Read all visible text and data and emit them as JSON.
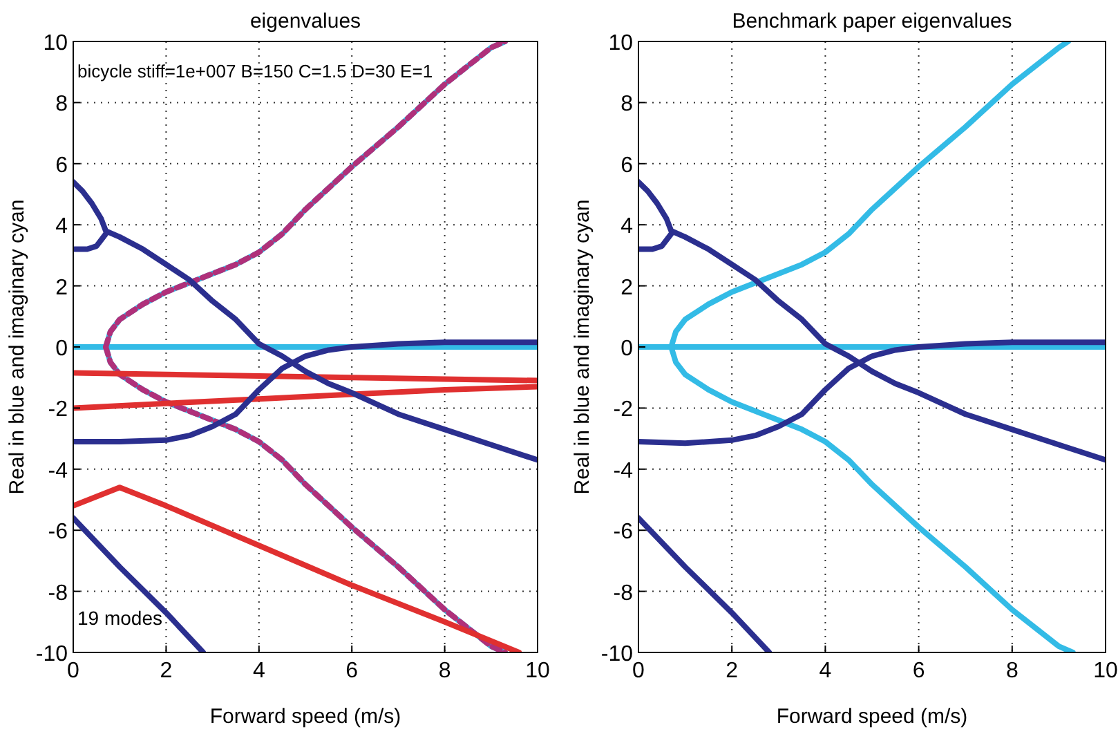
{
  "chart_data": [
    {
      "type": "line",
      "title": "eigenvalues",
      "xlabel": "Forward speed (m/s)",
      "ylabel": "Real in blue and imaginary cyan",
      "xlim": [
        0,
        10
      ],
      "xticks": [
        0,
        2,
        4,
        6,
        8,
        10
      ],
      "ylim": [
        -10,
        10
      ],
      "yticks": [
        -10,
        -8,
        -6,
        -4,
        -2,
        0,
        2,
        4,
        6,
        8,
        10
      ],
      "grid": true,
      "line_style": "solid",
      "annotations": [
        "bicycle stiff=1e+007 B=150 C=1.5 D=30 E=1",
        "19 modes"
      ],
      "series": [
        {
          "color": "#33bbe6",
          "x": [
            0,
            10
          ],
          "values": [
            0,
            0
          ]
        },
        {
          "color": "#33bbe6",
          "x": [
            0.7,
            0.8,
            1,
            1.5,
            2,
            2.5,
            3,
            3.5,
            4,
            4.5,
            5,
            6,
            7,
            8,
            9,
            9.3
          ],
          "values": [
            0,
            0.5,
            0.9,
            1.4,
            1.8,
            2.1,
            2.4,
            2.7,
            3.1,
            3.7,
            4.5,
            5.9,
            7.2,
            8.6,
            9.8,
            10
          ]
        },
        {
          "color": "#33bbe6",
          "x": [
            0.7,
            0.8,
            1,
            1.5,
            2,
            2.5,
            3,
            3.5,
            4,
            4.5,
            5,
            6,
            7,
            8,
            9,
            9.3
          ],
          "values": [
            0,
            -0.5,
            -0.9,
            -1.4,
            -1.8,
            -2.1,
            -2.4,
            -2.7,
            -3.1,
            -3.7,
            -4.5,
            -5.9,
            -7.2,
            -8.6,
            -9.8,
            -10
          ]
        },
        {
          "color": "#b0307a",
          "line_style": "dashed",
          "x": [
            0.7,
            0.8,
            1,
            1.5,
            2,
            2.5,
            3,
            3.5,
            4,
            4.5,
            5,
            6,
            7,
            8,
            9,
            9.3
          ],
          "values": [
            0,
            0.5,
            0.9,
            1.4,
            1.8,
            2.1,
            2.4,
            2.7,
            3.1,
            3.7,
            4.5,
            5.9,
            7.2,
            8.6,
            9.8,
            10
          ]
        },
        {
          "color": "#b0307a",
          "line_style": "dashed",
          "x": [
            0.7,
            0.8,
            1,
            1.5,
            2,
            2.5,
            3,
            3.5,
            4,
            4.5,
            5,
            6,
            7,
            8,
            9,
            9.3
          ],
          "values": [
            0,
            -0.5,
            -0.9,
            -1.4,
            -1.8,
            -2.1,
            -2.4,
            -2.7,
            -3.1,
            -3.7,
            -4.5,
            -5.9,
            -7.2,
            -8.6,
            -9.8,
            -10
          ]
        },
        {
          "color": "#e03030",
          "x": [
            0,
            2,
            4,
            6,
            8,
            10
          ],
          "values": [
            -0.85,
            -0.9,
            -0.95,
            -1.0,
            -1.05,
            -1.1
          ]
        },
        {
          "color": "#e03030",
          "x": [
            0,
            2,
            4,
            6,
            8,
            10
          ],
          "values": [
            -2,
            -1.85,
            -1.7,
            -1.55,
            -1.4,
            -1.3
          ]
        },
        {
          "color": "#e03030",
          "x": [
            0,
            1,
            2,
            4,
            6,
            8,
            9.6
          ],
          "values": [
            -5.2,
            -4.6,
            -5.2,
            -6.5,
            -7.8,
            -9,
            -10
          ]
        },
        {
          "color": "#2b2f8f",
          "x": [
            0,
            0.2,
            0.4,
            0.6,
            0.7,
            1,
            1.5,
            2,
            2.5,
            3,
            3.5,
            4,
            4.5,
            5,
            5.5,
            6,
            7,
            8,
            9,
            10
          ],
          "values": [
            5.4,
            5.1,
            4.7,
            4.2,
            3.8,
            3.6,
            3.2,
            2.7,
            2.2,
            1.5,
            0.9,
            0.1,
            -0.3,
            -0.8,
            -1.2,
            -1.5,
            -2.2,
            -2.7,
            -3.2,
            -3.7
          ]
        },
        {
          "color": "#2b2f8f",
          "x": [
            0,
            0.3,
            0.5,
            0.7
          ],
          "values": [
            3.2,
            3.2,
            3.3,
            3.7
          ]
        },
        {
          "color": "#2b2f8f",
          "x": [
            0,
            1,
            2,
            2.5,
            3,
            3.5,
            4,
            4.5,
            5,
            5.5,
            6,
            7,
            8,
            9,
            10
          ],
          "values": [
            -3.1,
            -3.1,
            -3.05,
            -2.9,
            -2.6,
            -2.2,
            -1.4,
            -0.7,
            -0.3,
            -0.1,
            0,
            0.1,
            0.15,
            0.15,
            0.15
          ]
        },
        {
          "color": "#2b2f8f",
          "x": [
            0,
            1,
            2,
            2.8
          ],
          "values": [
            -5.6,
            -7.2,
            -8.7,
            -10
          ]
        }
      ]
    },
    {
      "type": "line",
      "title": "Benchmark paper eigenvalues",
      "xlabel": "Forward speed (m/s)",
      "ylabel": "Real in blue and imaginary cyan",
      "xlim": [
        0,
        10
      ],
      "xticks": [
        0,
        2,
        4,
        6,
        8,
        10
      ],
      "ylim": [
        -10,
        10
      ],
      "yticks": [
        -10,
        -8,
        -6,
        -4,
        -2,
        0,
        2,
        4,
        6,
        8,
        10
      ],
      "grid": true,
      "line_style": "solid",
      "series": [
        {
          "color": "#33bbe6",
          "x": [
            0,
            10
          ],
          "values": [
            0,
            0
          ]
        },
        {
          "color": "#33bbe6",
          "x": [
            0.7,
            0.8,
            1,
            1.5,
            2,
            2.5,
            3,
            3.5,
            4,
            4.5,
            5,
            6,
            7,
            8,
            9,
            9.2
          ],
          "values": [
            0,
            0.5,
            0.9,
            1.4,
            1.8,
            2.1,
            2.4,
            2.7,
            3.1,
            3.7,
            4.5,
            5.9,
            7.2,
            8.6,
            9.8,
            10
          ]
        },
        {
          "color": "#33bbe6",
          "x": [
            0.7,
            0.8,
            1,
            1.5,
            2,
            2.5,
            3,
            3.5,
            4,
            4.5,
            5,
            6,
            7,
            8,
            9,
            9.3
          ],
          "values": [
            0,
            -0.5,
            -0.9,
            -1.4,
            -1.8,
            -2.1,
            -2.4,
            -2.7,
            -3.1,
            -3.7,
            -4.5,
            -5.9,
            -7.2,
            -8.6,
            -9.8,
            -10
          ]
        },
        {
          "color": "#2b2f8f",
          "x": [
            0,
            0.2,
            0.4,
            0.6,
            0.7,
            1,
            1.5,
            2,
            2.5,
            3,
            3.5,
            4,
            4.5,
            5,
            5.5,
            6,
            7,
            8,
            9,
            10
          ],
          "values": [
            5.4,
            5.1,
            4.7,
            4.2,
            3.8,
            3.6,
            3.2,
            2.7,
            2.2,
            1.5,
            0.9,
            0.1,
            -0.3,
            -0.8,
            -1.2,
            -1.5,
            -2.2,
            -2.7,
            -3.2,
            -3.7
          ]
        },
        {
          "color": "#2b2f8f",
          "x": [
            0,
            0.3,
            0.5,
            0.7
          ],
          "values": [
            3.2,
            3.2,
            3.3,
            3.7
          ]
        },
        {
          "color": "#2b2f8f",
          "x": [
            0,
            1,
            2,
            2.5,
            3,
            3.5,
            4,
            4.5,
            5,
            5.5,
            6,
            7,
            8,
            9,
            10
          ],
          "values": [
            -3.1,
            -3.15,
            -3.05,
            -2.9,
            -2.6,
            -2.2,
            -1.4,
            -0.7,
            -0.3,
            -0.1,
            0,
            0.1,
            0.15,
            0.15,
            0.15
          ]
        },
        {
          "color": "#2b2f8f",
          "x": [
            0,
            1,
            2,
            2.8
          ],
          "values": [
            -5.6,
            -7.2,
            -8.7,
            -10
          ]
        }
      ]
    }
  ]
}
